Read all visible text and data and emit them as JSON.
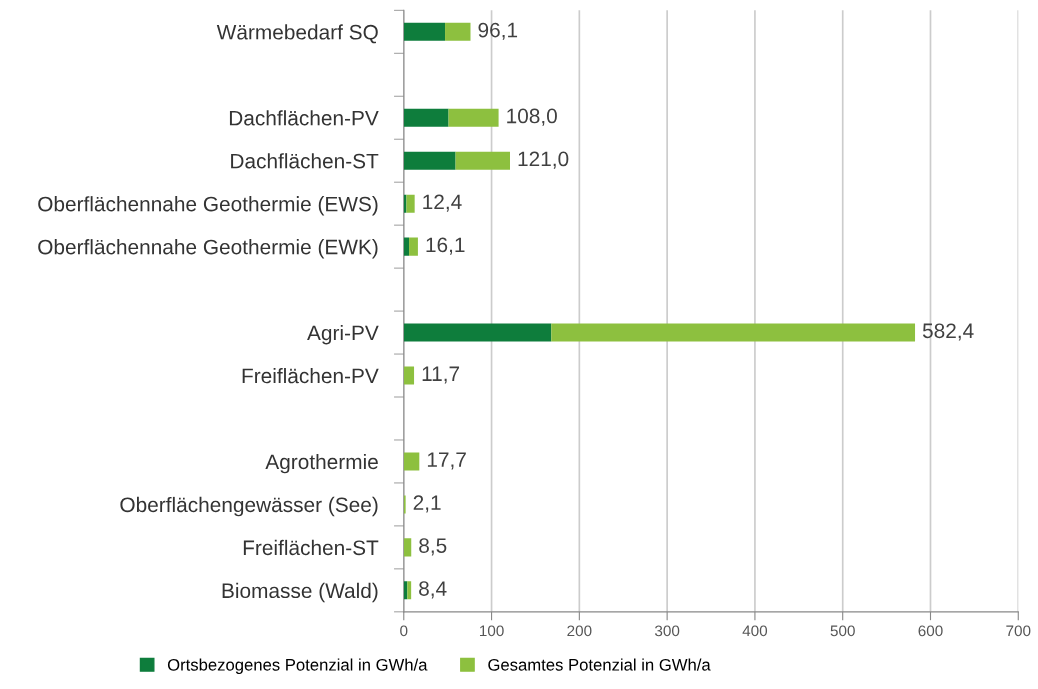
{
  "chart_data": {
    "type": "bar",
    "orientation": "horizontal",
    "stacked": true,
    "categories": [
      "Wärmebedarf SQ",
      null,
      "Dachflächen-PV",
      "Dachflächen-ST",
      "Oberflächennahe Geothermie (EWS)",
      "Oberflächennahe Geothermie (EWK)",
      null,
      "Agri-PV",
      "Freiflächen-PV",
      null,
      "Agrothermie",
      "Oberflächengewässer (See)",
      "Freiflächen-ST",
      "Biomasse (Wald)"
    ],
    "series": [
      {
        "name": "Ortsbezogenes Potenzial in GWh/a",
        "color": "#0e7d3c",
        "values": [
          47,
          null,
          51,
          59,
          3,
          6,
          null,
          168,
          0,
          null,
          0,
          0,
          0,
          4
        ]
      },
      {
        "name": "Gesamtes Potenzial in GWh/a",
        "color": "#8dc03f",
        "values": [
          29,
          null,
          57,
          62,
          9.4,
          10.1,
          null,
          414.4,
          11.7,
          null,
          17.7,
          2.1,
          8.5,
          4.4
        ]
      }
    ],
    "annotations": [
      {
        "text": "96,1",
        "x": 76,
        "y": "Wärmebedarf SQ"
      }
    ],
    "totals": [
      null,
      null,
      "108,0",
      "121,0",
      "12,4",
      "16,1",
      null,
      "582,4",
      "11,7",
      null,
      "17,7",
      "2,1",
      "8,5",
      "8,4"
    ],
    "xlim": [
      0,
      700
    ],
    "xticks": [
      0,
      100,
      200,
      300,
      400,
      500,
      600,
      700
    ],
    "grid": "x",
    "legend": "bottom"
  }
}
